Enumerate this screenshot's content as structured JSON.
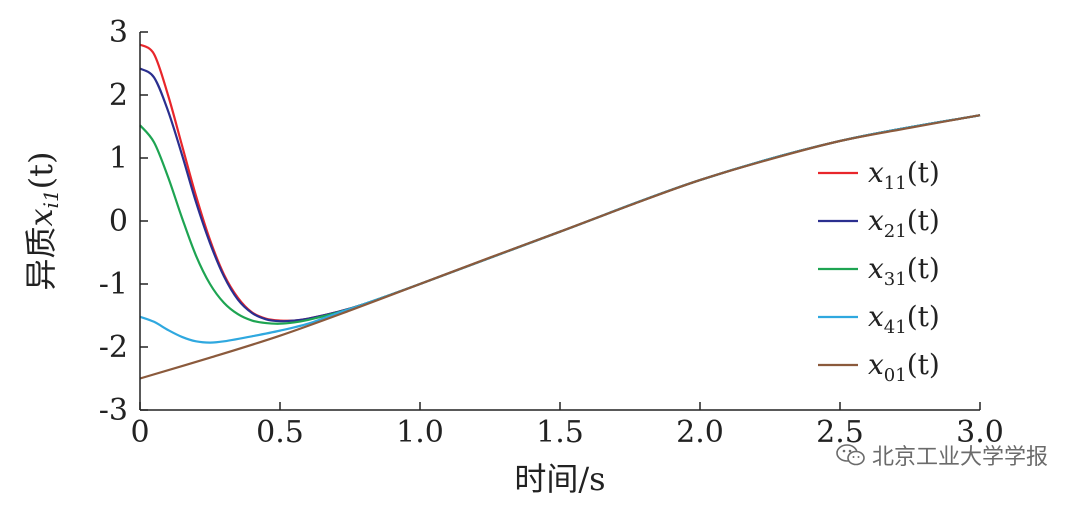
{
  "chart_data": {
    "type": "line",
    "title": "",
    "xlabel": "时间/s",
    "ylabel": {
      "prefix": "异质",
      "var": "x",
      "sub": "i1",
      "arg": "(t)"
    },
    "xlim": [
      0,
      3
    ],
    "ylim": [
      -3,
      3
    ],
    "xticks": [
      "0",
      "0.5",
      "1.0",
      "1.5",
      "2.0",
      "2.5",
      "3.0"
    ],
    "yticks": [
      "3",
      "2",
      "1",
      "0",
      "-1",
      "-2",
      "-3"
    ],
    "legend_position": "right",
    "series": [
      {
        "id": "x11",
        "var": "x",
        "sub": "11",
        "arg": "(t)",
        "color": "#e8262b",
        "points": [
          [
            0,
            2.8
          ],
          [
            0.05,
            2.65
          ],
          [
            0.1,
            2.0
          ],
          [
            0.15,
            1.2
          ],
          [
            0.2,
            0.4
          ],
          [
            0.25,
            -0.3
          ],
          [
            0.3,
            -0.85
          ],
          [
            0.35,
            -1.22
          ],
          [
            0.4,
            -1.45
          ],
          [
            0.45,
            -1.55
          ],
          [
            0.5,
            -1.58
          ],
          [
            0.55,
            -1.58
          ],
          [
            0.6,
            -1.55
          ],
          [
            0.7,
            -1.45
          ],
          [
            0.8,
            -1.32
          ],
          [
            1.0,
            -1.0
          ],
          [
            1.5,
            -0.17
          ],
          [
            2.0,
            0.65
          ],
          [
            2.5,
            1.27
          ],
          [
            3.0,
            1.68
          ]
        ]
      },
      {
        "id": "x21",
        "var": "x",
        "sub": "21",
        "arg": "(t)",
        "color": "#2b2f8f",
        "points": [
          [
            0,
            2.42
          ],
          [
            0.05,
            2.28
          ],
          [
            0.1,
            1.75
          ],
          [
            0.15,
            1.05
          ],
          [
            0.2,
            0.3
          ],
          [
            0.25,
            -0.35
          ],
          [
            0.3,
            -0.88
          ],
          [
            0.35,
            -1.25
          ],
          [
            0.4,
            -1.46
          ],
          [
            0.45,
            -1.56
          ],
          [
            0.5,
            -1.59
          ],
          [
            0.55,
            -1.58
          ],
          [
            0.6,
            -1.55
          ],
          [
            0.7,
            -1.45
          ],
          [
            0.8,
            -1.32
          ],
          [
            1.0,
            -1.0
          ],
          [
            1.5,
            -0.17
          ],
          [
            2.0,
            0.65
          ],
          [
            2.5,
            1.27
          ],
          [
            3.0,
            1.68
          ]
        ]
      },
      {
        "id": "x31",
        "var": "x",
        "sub": "31",
        "arg": "(t)",
        "color": "#1ea452",
        "points": [
          [
            0,
            1.52
          ],
          [
            0.05,
            1.25
          ],
          [
            0.1,
            0.7
          ],
          [
            0.15,
            0.05
          ],
          [
            0.2,
            -0.55
          ],
          [
            0.25,
            -1.0
          ],
          [
            0.3,
            -1.3
          ],
          [
            0.35,
            -1.48
          ],
          [
            0.4,
            -1.58
          ],
          [
            0.45,
            -1.62
          ],
          [
            0.5,
            -1.63
          ],
          [
            0.55,
            -1.61
          ],
          [
            0.6,
            -1.57
          ],
          [
            0.7,
            -1.46
          ],
          [
            0.8,
            -1.32
          ],
          [
            1.0,
            -1.0
          ],
          [
            1.5,
            -0.17
          ],
          [
            2.0,
            0.65
          ],
          [
            2.5,
            1.27
          ],
          [
            3.0,
            1.68
          ]
        ]
      },
      {
        "id": "x41",
        "var": "x",
        "sub": "41",
        "arg": "(t)",
        "color": "#2fa8df",
        "points": [
          [
            0,
            -1.52
          ],
          [
            0.05,
            -1.6
          ],
          [
            0.1,
            -1.73
          ],
          [
            0.15,
            -1.84
          ],
          [
            0.2,
            -1.91
          ],
          [
            0.25,
            -1.93
          ],
          [
            0.3,
            -1.91
          ],
          [
            0.4,
            -1.83
          ],
          [
            0.5,
            -1.74
          ],
          [
            0.6,
            -1.63
          ],
          [
            0.7,
            -1.47
          ],
          [
            0.8,
            -1.32
          ],
          [
            1.0,
            -1.0
          ],
          [
            1.5,
            -0.17
          ],
          [
            2.0,
            0.65
          ],
          [
            2.5,
            1.27
          ],
          [
            3.0,
            1.68
          ]
        ]
      },
      {
        "id": "x01",
        "var": "x",
        "sub": "01",
        "arg": "(t)",
        "color": "#8b5a3c",
        "points": [
          [
            0,
            -2.5
          ],
          [
            0.25,
            -2.17
          ],
          [
            0.5,
            -1.82
          ],
          [
            0.75,
            -1.42
          ],
          [
            1.0,
            -1.0
          ],
          [
            1.25,
            -0.58
          ],
          [
            1.5,
            -0.17
          ],
          [
            1.75,
            0.25
          ],
          [
            2.0,
            0.65
          ],
          [
            2.25,
            0.98
          ],
          [
            2.5,
            1.27
          ],
          [
            2.75,
            1.48
          ],
          [
            3.0,
            1.68
          ]
        ]
      }
    ]
  },
  "watermark": {
    "text": "北京工业大学学报",
    "icon": "wechat-icon"
  }
}
